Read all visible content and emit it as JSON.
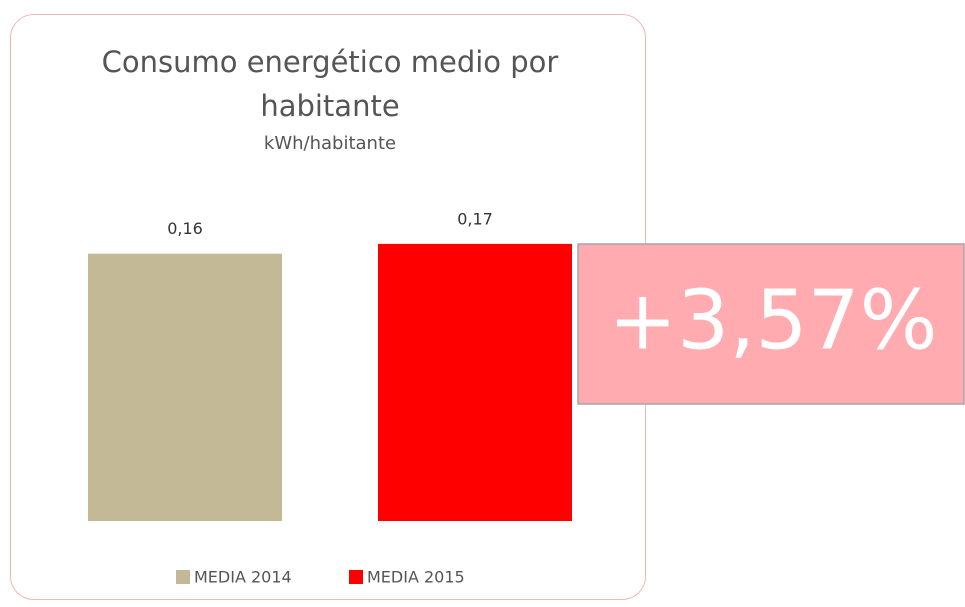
{
  "chart_data": {
    "type": "bar",
    "title": "Consumo energético medio por habitante",
    "subtitle": "kWh/habitante",
    "categories": [
      null
    ],
    "series": [
      {
        "name": "MEDIA 2014",
        "color": "#c4b996",
        "values": [
          0.164
        ],
        "value_labels": [
          "0,16"
        ]
      },
      {
        "name": "MEDIA 2015",
        "color": "#ff0000",
        "values": [
          0.17
        ],
        "value_labels": [
          "0,17"
        ]
      }
    ],
    "ylim": [
      0,
      0.2
    ],
    "annotation": "+3,57%"
  }
}
